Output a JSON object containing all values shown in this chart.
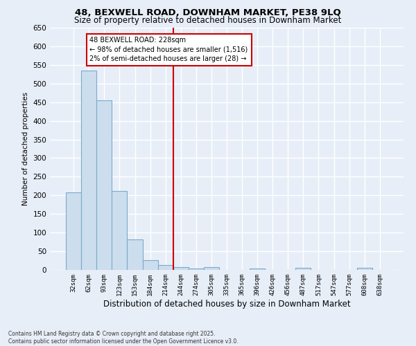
{
  "title": "48, BEXWELL ROAD, DOWNHAM MARKET, PE38 9LQ",
  "subtitle": "Size of property relative to detached houses in Downham Market",
  "xlabel": "Distribution of detached houses by size in Downham Market",
  "ylabel": "Number of detached properties",
  "bar_color": "#ccdded",
  "bar_edge_color": "#7aaacc",
  "background_color": "#e8eef8",
  "grid_color": "#ffffff",
  "categories": [
    "32sqm",
    "62sqm",
    "93sqm",
    "123sqm",
    "153sqm",
    "184sqm",
    "214sqm",
    "244sqm",
    "274sqm",
    "305sqm",
    "335sqm",
    "365sqm",
    "396sqm",
    "426sqm",
    "456sqm",
    "487sqm",
    "517sqm",
    "547sqm",
    "577sqm",
    "608sqm",
    "638sqm"
  ],
  "values": [
    208,
    535,
    455,
    212,
    81,
    26,
    13,
    7,
    4,
    8,
    0,
    0,
    4,
    0,
    0,
    5,
    0,
    0,
    0,
    5,
    0
  ],
  "vline_color": "#cc0000",
  "annotation_text": "48 BEXWELL ROAD: 228sqm\n← 98% of detached houses are smaller (1,516)\n2% of semi-detached houses are larger (28) →",
  "annotation_box_color": "#ffffff",
  "annotation_box_edge_color": "#cc0000",
  "footer": "Contains HM Land Registry data © Crown copyright and database right 2025.\nContains public sector information licensed under the Open Government Licence v3.0.",
  "ylim": [
    0,
    650
  ],
  "yticks": [
    0,
    50,
    100,
    150,
    200,
    250,
    300,
    350,
    400,
    450,
    500,
    550,
    600,
    650
  ]
}
